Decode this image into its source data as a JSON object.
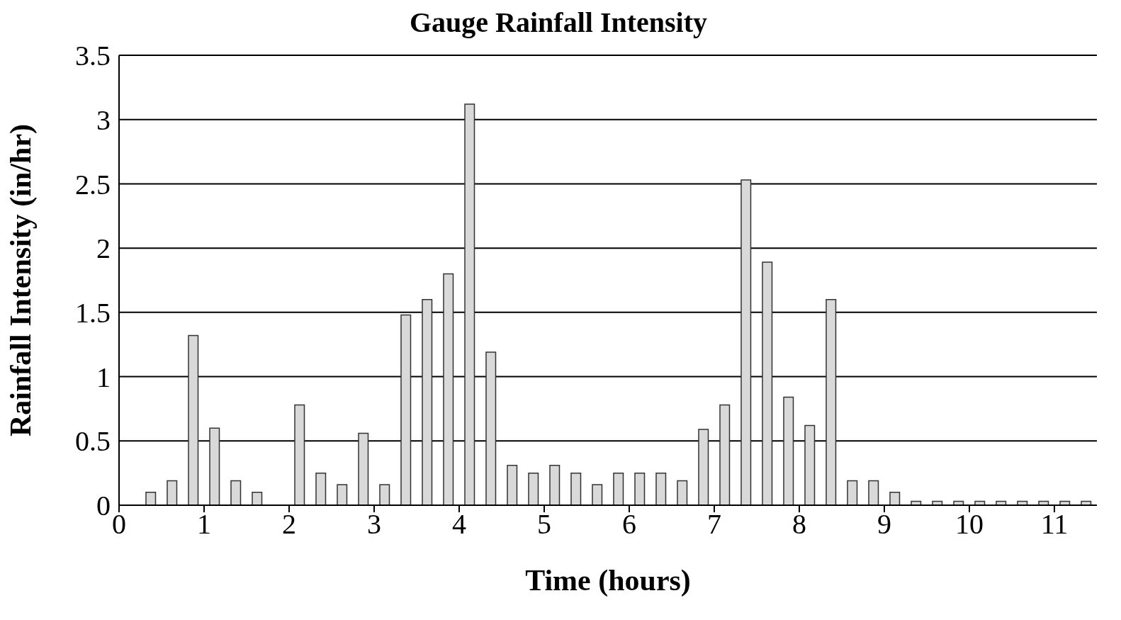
{
  "chart_data": {
    "type": "bar",
    "title": "Gauge Rainfall Intensity",
    "xlabel": "Time (hours)",
    "ylabel": "Rainfall Intensity (in/hr)",
    "x": [
      0.375,
      0.625,
      0.875,
      1.125,
      1.375,
      1.625,
      2.125,
      2.375,
      2.625,
      2.875,
      3.125,
      3.375,
      3.625,
      3.875,
      4.125,
      4.375,
      4.625,
      4.875,
      5.125,
      5.375,
      5.625,
      5.875,
      6.125,
      6.375,
      6.625,
      6.875,
      7.125,
      7.375,
      7.625,
      7.875,
      8.125,
      8.375,
      8.625,
      8.875,
      9.125,
      9.375,
      9.625,
      9.875,
      10.125,
      10.375,
      10.625,
      10.875,
      11.125,
      11.375
    ],
    "values": [
      0.1,
      0.19,
      1.32,
      0.6,
      0.19,
      0.1,
      0.78,
      0.25,
      0.16,
      0.56,
      0.16,
      1.48,
      1.6,
      1.8,
      3.12,
      1.19,
      0.31,
      0.25,
      0.31,
      0.25,
      0.16,
      0.25,
      0.25,
      0.25,
      0.19,
      0.59,
      0.78,
      2.53,
      1.89,
      0.84,
      0.62,
      1.6,
      0.19,
      0.19,
      0.1,
      0.03,
      0.03,
      0.03,
      0.03,
      0.03,
      0.03,
      0.03,
      0.03,
      0.03
    ],
    "color": "#d9d9d9",
    "xlim": [
      0,
      11.5
    ],
    "xticks": [
      0,
      1,
      2,
      3,
      4,
      5,
      6,
      7,
      8,
      9,
      10,
      11
    ],
    "ylim": [
      0,
      3.5
    ],
    "yticks": [
      0,
      0.5,
      1,
      1.5,
      2,
      2.5,
      3,
      3.5
    ],
    "grid": "y"
  }
}
